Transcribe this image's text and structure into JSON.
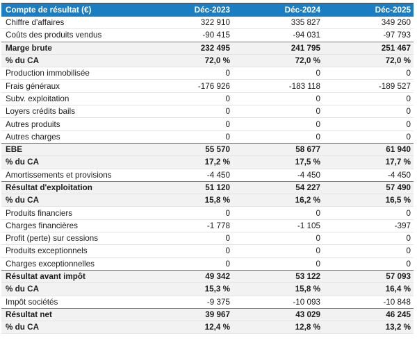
{
  "colors": {
    "header_bg": "#1b7ec2",
    "header_text": "#ffffff",
    "shaded_row_bg": "#f2f2f2",
    "group_border": "#7a7a7a",
    "row_border": "#e4e4e4",
    "frame_border": "#4a4a4a",
    "text": "#1c1c1c"
  },
  "table": {
    "header": {
      "label": "Compte de résultat (€)",
      "columns": [
        "Déc-2023",
        "Déc-2024",
        "Déc-2025"
      ]
    },
    "rows": [
      {
        "label": "Chiffre d'affaires",
        "values": [
          "322 910",
          "335 827",
          "349 260"
        ],
        "bold": false,
        "shaded": false,
        "group_start": false
      },
      {
        "label": "Coûts des produits vendus",
        "values": [
          "-90 415",
          "-94 031",
          "-97 793"
        ],
        "bold": false,
        "shaded": false,
        "group_start": false
      },
      {
        "label": "Marge brute",
        "values": [
          "232 495",
          "241 795",
          "251 467"
        ],
        "bold": true,
        "shaded": true,
        "group_start": true
      },
      {
        "label": "% du CA",
        "values": [
          "72,0 %",
          "72,0 %",
          "72,0 %"
        ],
        "bold": true,
        "shaded": true,
        "group_start": false
      },
      {
        "label": "Production immobilisée",
        "values": [
          "0",
          "0",
          "0"
        ],
        "bold": false,
        "shaded": false,
        "group_start": false
      },
      {
        "label": "Frais généraux",
        "values": [
          "-176 926",
          "-183 118",
          "-189 527"
        ],
        "bold": false,
        "shaded": false,
        "group_start": false
      },
      {
        "label": "Subv. exploitation",
        "values": [
          "0",
          "0",
          "0"
        ],
        "bold": false,
        "shaded": false,
        "group_start": false
      },
      {
        "label": "Loyers crédits bails",
        "values": [
          "0",
          "0",
          "0"
        ],
        "bold": false,
        "shaded": false,
        "group_start": false
      },
      {
        "label": "Autres produits",
        "values": [
          "0",
          "0",
          "0"
        ],
        "bold": false,
        "shaded": false,
        "group_start": false
      },
      {
        "label": "Autres charges",
        "values": [
          "0",
          "0",
          "0"
        ],
        "bold": false,
        "shaded": false,
        "group_start": false
      },
      {
        "label": "EBE",
        "values": [
          "55 570",
          "58 677",
          "61 940"
        ],
        "bold": true,
        "shaded": true,
        "group_start": true
      },
      {
        "label": "% du CA",
        "values": [
          "17,2 %",
          "17,5 %",
          "17,7 %"
        ],
        "bold": true,
        "shaded": true,
        "group_start": false
      },
      {
        "label": "Amortissements et provisions",
        "values": [
          "-4 450",
          "-4 450",
          "-4 450"
        ],
        "bold": false,
        "shaded": false,
        "group_start": false
      },
      {
        "label": "Résultat d'exploitation",
        "values": [
          "51 120",
          "54 227",
          "57 490"
        ],
        "bold": true,
        "shaded": true,
        "group_start": true
      },
      {
        "label": "% du CA",
        "values": [
          "15,8 %",
          "16,2 %",
          "16,5 %"
        ],
        "bold": true,
        "shaded": true,
        "group_start": false
      },
      {
        "label": "Produits financiers",
        "values": [
          "0",
          "0",
          "0"
        ],
        "bold": false,
        "shaded": false,
        "group_start": false
      },
      {
        "label": "Charges financières",
        "values": [
          "-1 778",
          "-1 105",
          "-397"
        ],
        "bold": false,
        "shaded": false,
        "group_start": false
      },
      {
        "label": "Profit (perte) sur cessions",
        "values": [
          "0",
          "0",
          "0"
        ],
        "bold": false,
        "shaded": false,
        "group_start": false
      },
      {
        "label": "Produits exceptionnels",
        "values": [
          "0",
          "0",
          "0"
        ],
        "bold": false,
        "shaded": false,
        "group_start": false
      },
      {
        "label": "Charges exceptionnelles",
        "values": [
          "0",
          "0",
          "0"
        ],
        "bold": false,
        "shaded": false,
        "group_start": false
      },
      {
        "label": "Résultat avant impôt",
        "values": [
          "49 342",
          "53 122",
          "57 093"
        ],
        "bold": true,
        "shaded": true,
        "group_start": true
      },
      {
        "label": "% du CA",
        "values": [
          "15,3 %",
          "15,8 %",
          "16,4 %"
        ],
        "bold": true,
        "shaded": true,
        "group_start": false
      },
      {
        "label": "Impôt sociétés",
        "values": [
          "-9 375",
          "-10 093",
          "-10 848"
        ],
        "bold": false,
        "shaded": false,
        "group_start": false
      },
      {
        "label": "Résultat net",
        "values": [
          "39 967",
          "43 029",
          "46 245"
        ],
        "bold": true,
        "shaded": true,
        "group_start": true
      },
      {
        "label": "% du CA",
        "values": [
          "12,4 %",
          "12,8 %",
          "13,2 %"
        ],
        "bold": true,
        "shaded": true,
        "group_start": false
      }
    ]
  }
}
